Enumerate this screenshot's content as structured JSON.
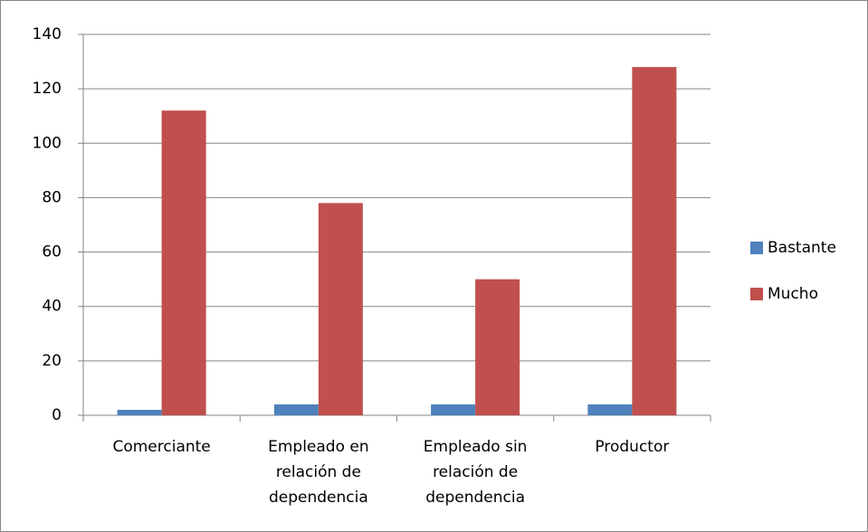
{
  "chart_data": {
    "type": "bar",
    "categories": [
      "Comerciante",
      "Empleado en relación de dependencia",
      "Empleado sin relación de dependencia",
      "Productor"
    ],
    "series": [
      {
        "name": "Bastante",
        "color": "#4f81bd",
        "values": [
          2,
          4,
          4,
          4
        ]
      },
      {
        "name": "Mucho",
        "color": "#c0504d",
        "values": [
          112,
          78,
          50,
          128
        ]
      }
    ],
    "ylim": [
      0,
      140
    ],
    "yticks": [
      0,
      20,
      40,
      60,
      80,
      100,
      120,
      140
    ],
    "grid": true,
    "legend": "right"
  }
}
